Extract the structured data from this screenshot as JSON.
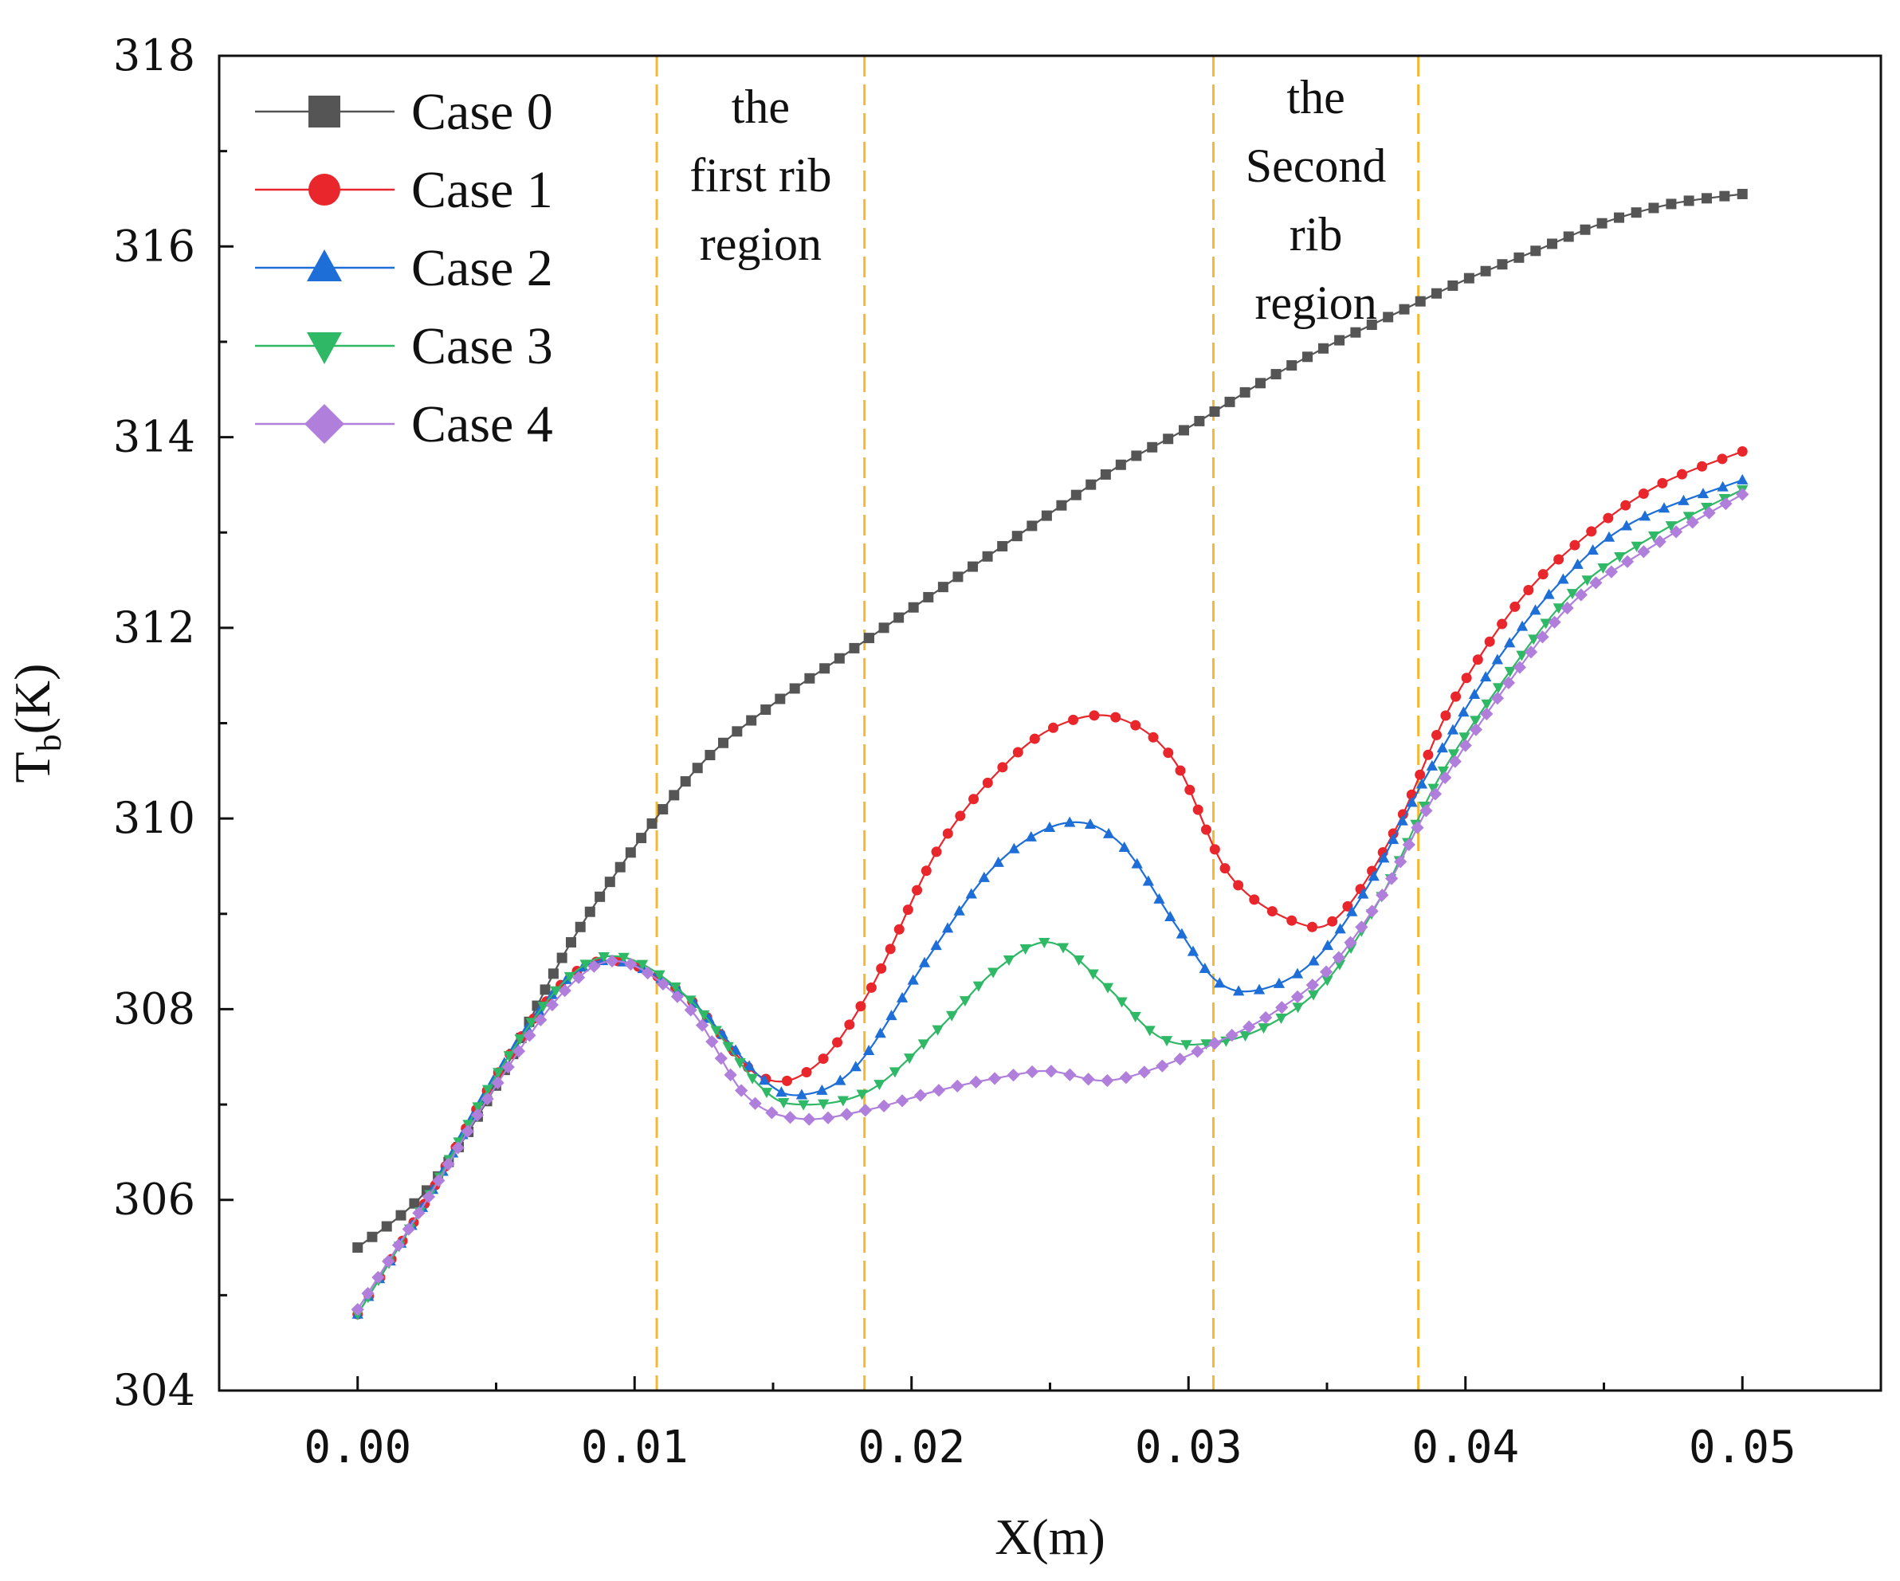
{
  "chart_data": {
    "type": "line",
    "title": "",
    "xlabel": "X(m)",
    "ylabel_main": "T",
    "ylabel_sub": "b",
    "ylabel_unit": "(K)",
    "xlim": [
      -0.005,
      0.055
    ],
    "ylim": [
      304,
      318
    ],
    "xticks": [
      0.0,
      0.01,
      0.02,
      0.03,
      0.04,
      0.05
    ],
    "xtick_labels": [
      "0.00",
      "0.01",
      "0.02",
      "0.03",
      "0.04",
      "0.05"
    ],
    "yticks": [
      304,
      306,
      308,
      310,
      312,
      314,
      316,
      318
    ],
    "ytick_labels": [
      "304",
      "306",
      "308",
      "310",
      "312",
      "314",
      "316",
      "318"
    ],
    "legend_position": "top-left",
    "grid": false,
    "region_lines": [
      0.0108,
      0.0183,
      0.0309,
      0.0383
    ],
    "region_labels": [
      {
        "lines": [
          "the",
          "first rib",
          "region"
        ],
        "x": 0.01455,
        "y_top": 317.3
      },
      {
        "lines": [
          "the",
          "Second",
          "rib",
          "region"
        ],
        "x": 0.0346,
        "y_top": 317.4
      }
    ],
    "series": [
      {
        "name": "Case 0",
        "color": "#555555",
        "marker": "square",
        "x": [
          0.0,
          0.0025,
          0.005,
          0.0075,
          0.01,
          0.0125,
          0.015,
          0.0175,
          0.02,
          0.0225,
          0.025,
          0.0275,
          0.03,
          0.0325,
          0.035,
          0.0375,
          0.04,
          0.0425,
          0.045,
          0.0475,
          0.05
        ],
        "y": [
          305.5,
          306.1,
          307.2,
          308.6,
          309.7,
          310.6,
          311.2,
          311.7,
          312.2,
          312.7,
          313.2,
          313.7,
          314.1,
          314.55,
          314.95,
          315.3,
          315.65,
          315.95,
          316.25,
          316.45,
          316.55
        ]
      },
      {
        "name": "Case 1",
        "color": "#e8262b",
        "marker": "circle",
        "x": [
          0.0,
          0.0025,
          0.005,
          0.0075,
          0.0095,
          0.012,
          0.0145,
          0.0165,
          0.0185,
          0.021,
          0.0235,
          0.0255,
          0.0275,
          0.0295,
          0.0315,
          0.034,
          0.0355,
          0.0375,
          0.0395,
          0.042,
          0.0445,
          0.047,
          0.05
        ],
        "y": [
          304.8,
          306.0,
          307.3,
          308.3,
          308.5,
          308.1,
          307.3,
          307.4,
          308.2,
          309.7,
          310.6,
          311.0,
          311.05,
          310.6,
          309.4,
          308.9,
          309.0,
          309.9,
          311.2,
          312.3,
          313.0,
          313.5,
          313.85
        ]
      },
      {
        "name": "Case 2",
        "color": "#1e6ed8",
        "marker": "triangle-up",
        "x": [
          0.0,
          0.0025,
          0.005,
          0.0075,
          0.0095,
          0.012,
          0.0145,
          0.016,
          0.018,
          0.0205,
          0.023,
          0.0255,
          0.0275,
          0.0295,
          0.031,
          0.0325,
          0.0345,
          0.0365,
          0.0385,
          0.041,
          0.0435,
          0.046,
          0.05
        ],
        "y": [
          304.8,
          306.0,
          307.3,
          308.3,
          308.5,
          308.1,
          307.3,
          307.1,
          307.4,
          308.5,
          309.5,
          309.95,
          309.75,
          308.9,
          308.3,
          308.2,
          308.5,
          309.3,
          310.4,
          311.6,
          312.5,
          313.1,
          313.55
        ]
      },
      {
        "name": "Case 3",
        "color": "#2fb865",
        "marker": "triangle-down",
        "x": [
          0.0,
          0.0025,
          0.005,
          0.0075,
          0.0095,
          0.012,
          0.0145,
          0.016,
          0.0185,
          0.021,
          0.023,
          0.025,
          0.027,
          0.029,
          0.031,
          0.033,
          0.035,
          0.037,
          0.039,
          0.0415,
          0.044,
          0.047,
          0.05
        ],
        "y": [
          304.8,
          306.0,
          307.3,
          308.3,
          308.55,
          308.1,
          307.2,
          307.0,
          307.15,
          307.8,
          308.4,
          308.7,
          308.25,
          307.7,
          307.65,
          307.85,
          308.3,
          309.2,
          310.4,
          311.5,
          312.4,
          313.0,
          313.45
        ]
      },
      {
        "name": "Case 4",
        "color": "#b07fdc",
        "marker": "diamond",
        "x": [
          0.0,
          0.0025,
          0.005,
          0.0075,
          0.0095,
          0.012,
          0.014,
          0.016,
          0.0185,
          0.021,
          0.0235,
          0.025,
          0.027,
          0.029,
          0.031,
          0.033,
          0.035,
          0.037,
          0.039,
          0.0415,
          0.044,
          0.047,
          0.05
        ],
        "y": [
          304.85,
          306.0,
          307.2,
          308.2,
          308.5,
          308.0,
          307.1,
          306.85,
          306.95,
          307.15,
          307.3,
          307.35,
          307.25,
          307.4,
          307.65,
          307.95,
          308.4,
          309.2,
          310.3,
          311.4,
          312.3,
          312.9,
          313.4
        ]
      }
    ]
  }
}
